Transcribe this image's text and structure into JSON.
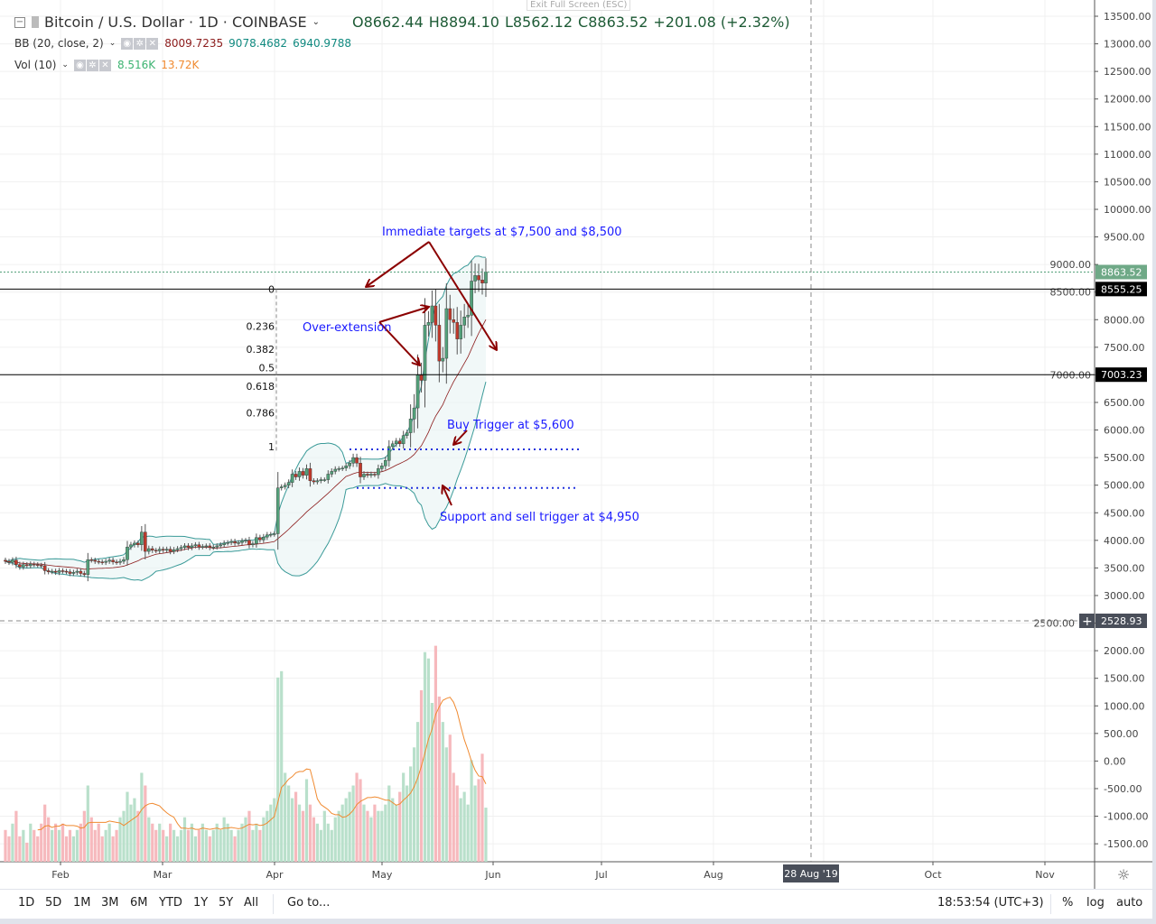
{
  "header": {
    "title": "Bitcoin / U.S. Dollar · 1D · COINBASE",
    "open": "O8662.44",
    "high": "H8894.10",
    "low": "L8562.12",
    "close": "C8863.52",
    "change": "+201.08 (+2.32%)",
    "exit_fullscreen": "Exit Full Screen (ESC)"
  },
  "indicators": {
    "bb": {
      "label": "BB (20, close, 2)",
      "basis": "8009.7235",
      "upper": "9078.4682",
      "lower": "6940.9788"
    },
    "vol": {
      "label": "Vol (10)",
      "value": "8.516K",
      "ma": "13.72K"
    }
  },
  "toolbar": {
    "ranges": [
      "1D",
      "5D",
      "1M",
      "3M",
      "6M",
      "YTD",
      "1Y",
      "5Y",
      "All"
    ],
    "goto": "Go to...",
    "clock": "18:53:54 (UTC+3)",
    "percent": "%",
    "log": "log",
    "auto": "auto"
  },
  "colors": {
    "up": "#53a07a",
    "down": "#c0392b",
    "band": "#3a9a98",
    "basis": "#8b1a1a",
    "annotation": "#1a1aff",
    "arrow": "#8b0000",
    "vol_up": "#b9e0cb",
    "vol_down": "#f6b9bd",
    "vol_ma": "#f08a30"
  },
  "chart_data": {
    "type": "candlestick",
    "symbol": "BTCUSD",
    "x_start": "2019-01-16",
    "closes": [
      3620,
      3600,
      3640,
      3560,
      3520,
      3560,
      3540,
      3570,
      3560,
      3550,
      3540,
      3450,
      3430,
      3440,
      3420,
      3450,
      3440,
      3430,
      3400,
      3420,
      3440,
      3400,
      3380,
      3650,
      3640,
      3620,
      3610,
      3600,
      3620,
      3640,
      3610,
      3600,
      3620,
      3650,
      3880,
      3920,
      3950,
      3920,
      4150,
      3800,
      3850,
      3820,
      3810,
      3840,
      3820,
      3840,
      3800,
      3830,
      3850,
      3870,
      3900,
      3870,
      3900,
      3920,
      3880,
      3890,
      3900,
      3870,
      3880,
      3900,
      3920,
      3950,
      3960,
      3980,
      3950,
      3960,
      3990,
      4000,
      3920,
      3940,
      4050,
      4010,
      4060,
      4100,
      4110,
      4120,
      4950,
      4970,
      5000,
      5050,
      5200,
      5150,
      5250,
      5180,
      5300,
      5080,
      5060,
      5080,
      5100,
      5100,
      5200,
      5250,
      5290,
      5300,
      5310,
      5350,
      5400,
      5500,
      5400,
      5150,
      5200,
      5180,
      5200,
      5190,
      5300,
      5350,
      5450,
      5700,
      5750,
      5800,
      5750,
      5900,
      5950,
      6200,
      6400,
      7000,
      6900,
      7900,
      7950,
      8250,
      7900,
      7250,
      7300,
      8200,
      8000,
      7950,
      7650,
      7900,
      8050,
      8080,
      8700,
      8800,
      8720,
      8662.44,
      8863.52
    ],
    "volumes_k": [
      5,
      4,
      6,
      8,
      4,
      5,
      3,
      6,
      5,
      4,
      6,
      9,
      7,
      5,
      6,
      5,
      6,
      4,
      5,
      4,
      5,
      6,
      8,
      12,
      7,
      5,
      6,
      4,
      5,
      6,
      4,
      5,
      7,
      8,
      11,
      9,
      10,
      8,
      14,
      12,
      7,
      6,
      5,
      6,
      5,
      4,
      6,
      5,
      4,
      5,
      7,
      5,
      6,
      4,
      5,
      6,
      5,
      4,
      5,
      6,
      5,
      7,
      6,
      5,
      4,
      5,
      6,
      7,
      8,
      5,
      6,
      5,
      7,
      8,
      9,
      10,
      29,
      30,
      14,
      12,
      10,
      11,
      9,
      8,
      13,
      9,
      7,
      6,
      5,
      8,
      6,
      5,
      7,
      8,
      9,
      10,
      11,
      12,
      14,
      13,
      9,
      8,
      7,
      9,
      8,
      8,
      9,
      12,
      10,
      9,
      11,
      14,
      12,
      15,
      18,
      22,
      27,
      33,
      32,
      25,
      34,
      26,
      22,
      18,
      20,
      14,
      12,
      10,
      11,
      9,
      16,
      12,
      13,
      17,
      8.516
    ],
    "price_axis": {
      "ticks": [
        "13500.00",
        "13000.00",
        "12500.00",
        "12000.00",
        "11500.00",
        "11000.00",
        "10500.00",
        "10000.00",
        "9500.00",
        "9000.00",
        "8500.00",
        "8000.00",
        "7500.00",
        "7000.00",
        "6500.00",
        "6000.00",
        "5500.00",
        "5000.00",
        "4500.00",
        "4000.00",
        "3500.00",
        "3000.00",
        "2500.00",
        "2000.00",
        "1500.00",
        "1000.00",
        "500.00",
        "0.00",
        "-500.00",
        "-1000.00",
        "-1500.00"
      ],
      "range": [
        -1500,
        13500
      ]
    },
    "time_axis": {
      "ticks": [
        "Feb",
        "Mar",
        "Apr",
        "May",
        "Jun",
        "Jul",
        "Aug",
        "Oct",
        "Nov"
      ],
      "crosshair_label": "28 Aug '19"
    },
    "price_labels": {
      "last": "8863.52",
      "line_upper": "8555.25",
      "line_lower": "7003.23",
      "crosshair": "2528.93"
    },
    "horizontal_lines": [
      8555.25,
      7003.23
    ],
    "fib_levels": [
      {
        "label": "0",
        "value": 0
      },
      {
        "label": "0.236",
        "value": 0.236
      },
      {
        "label": "0.382",
        "value": 0.382
      },
      {
        "label": "0.5",
        "value": 0.5
      },
      {
        "label": "0.618",
        "value": 0.618
      },
      {
        "label": "0.786",
        "value": 0.786
      },
      {
        "label": "1",
        "value": 1
      }
    ],
    "fib_range": [
      5700,
      8555.25
    ],
    "support_lines": [
      5650,
      4950
    ],
    "annotations": [
      {
        "text": "Immediate targets at $7,500 and $8,500"
      },
      {
        "text": "Over-extension"
      },
      {
        "text": "Buy Trigger at $5,600"
      },
      {
        "text": "Support and sell trigger at $4,950"
      }
    ]
  }
}
